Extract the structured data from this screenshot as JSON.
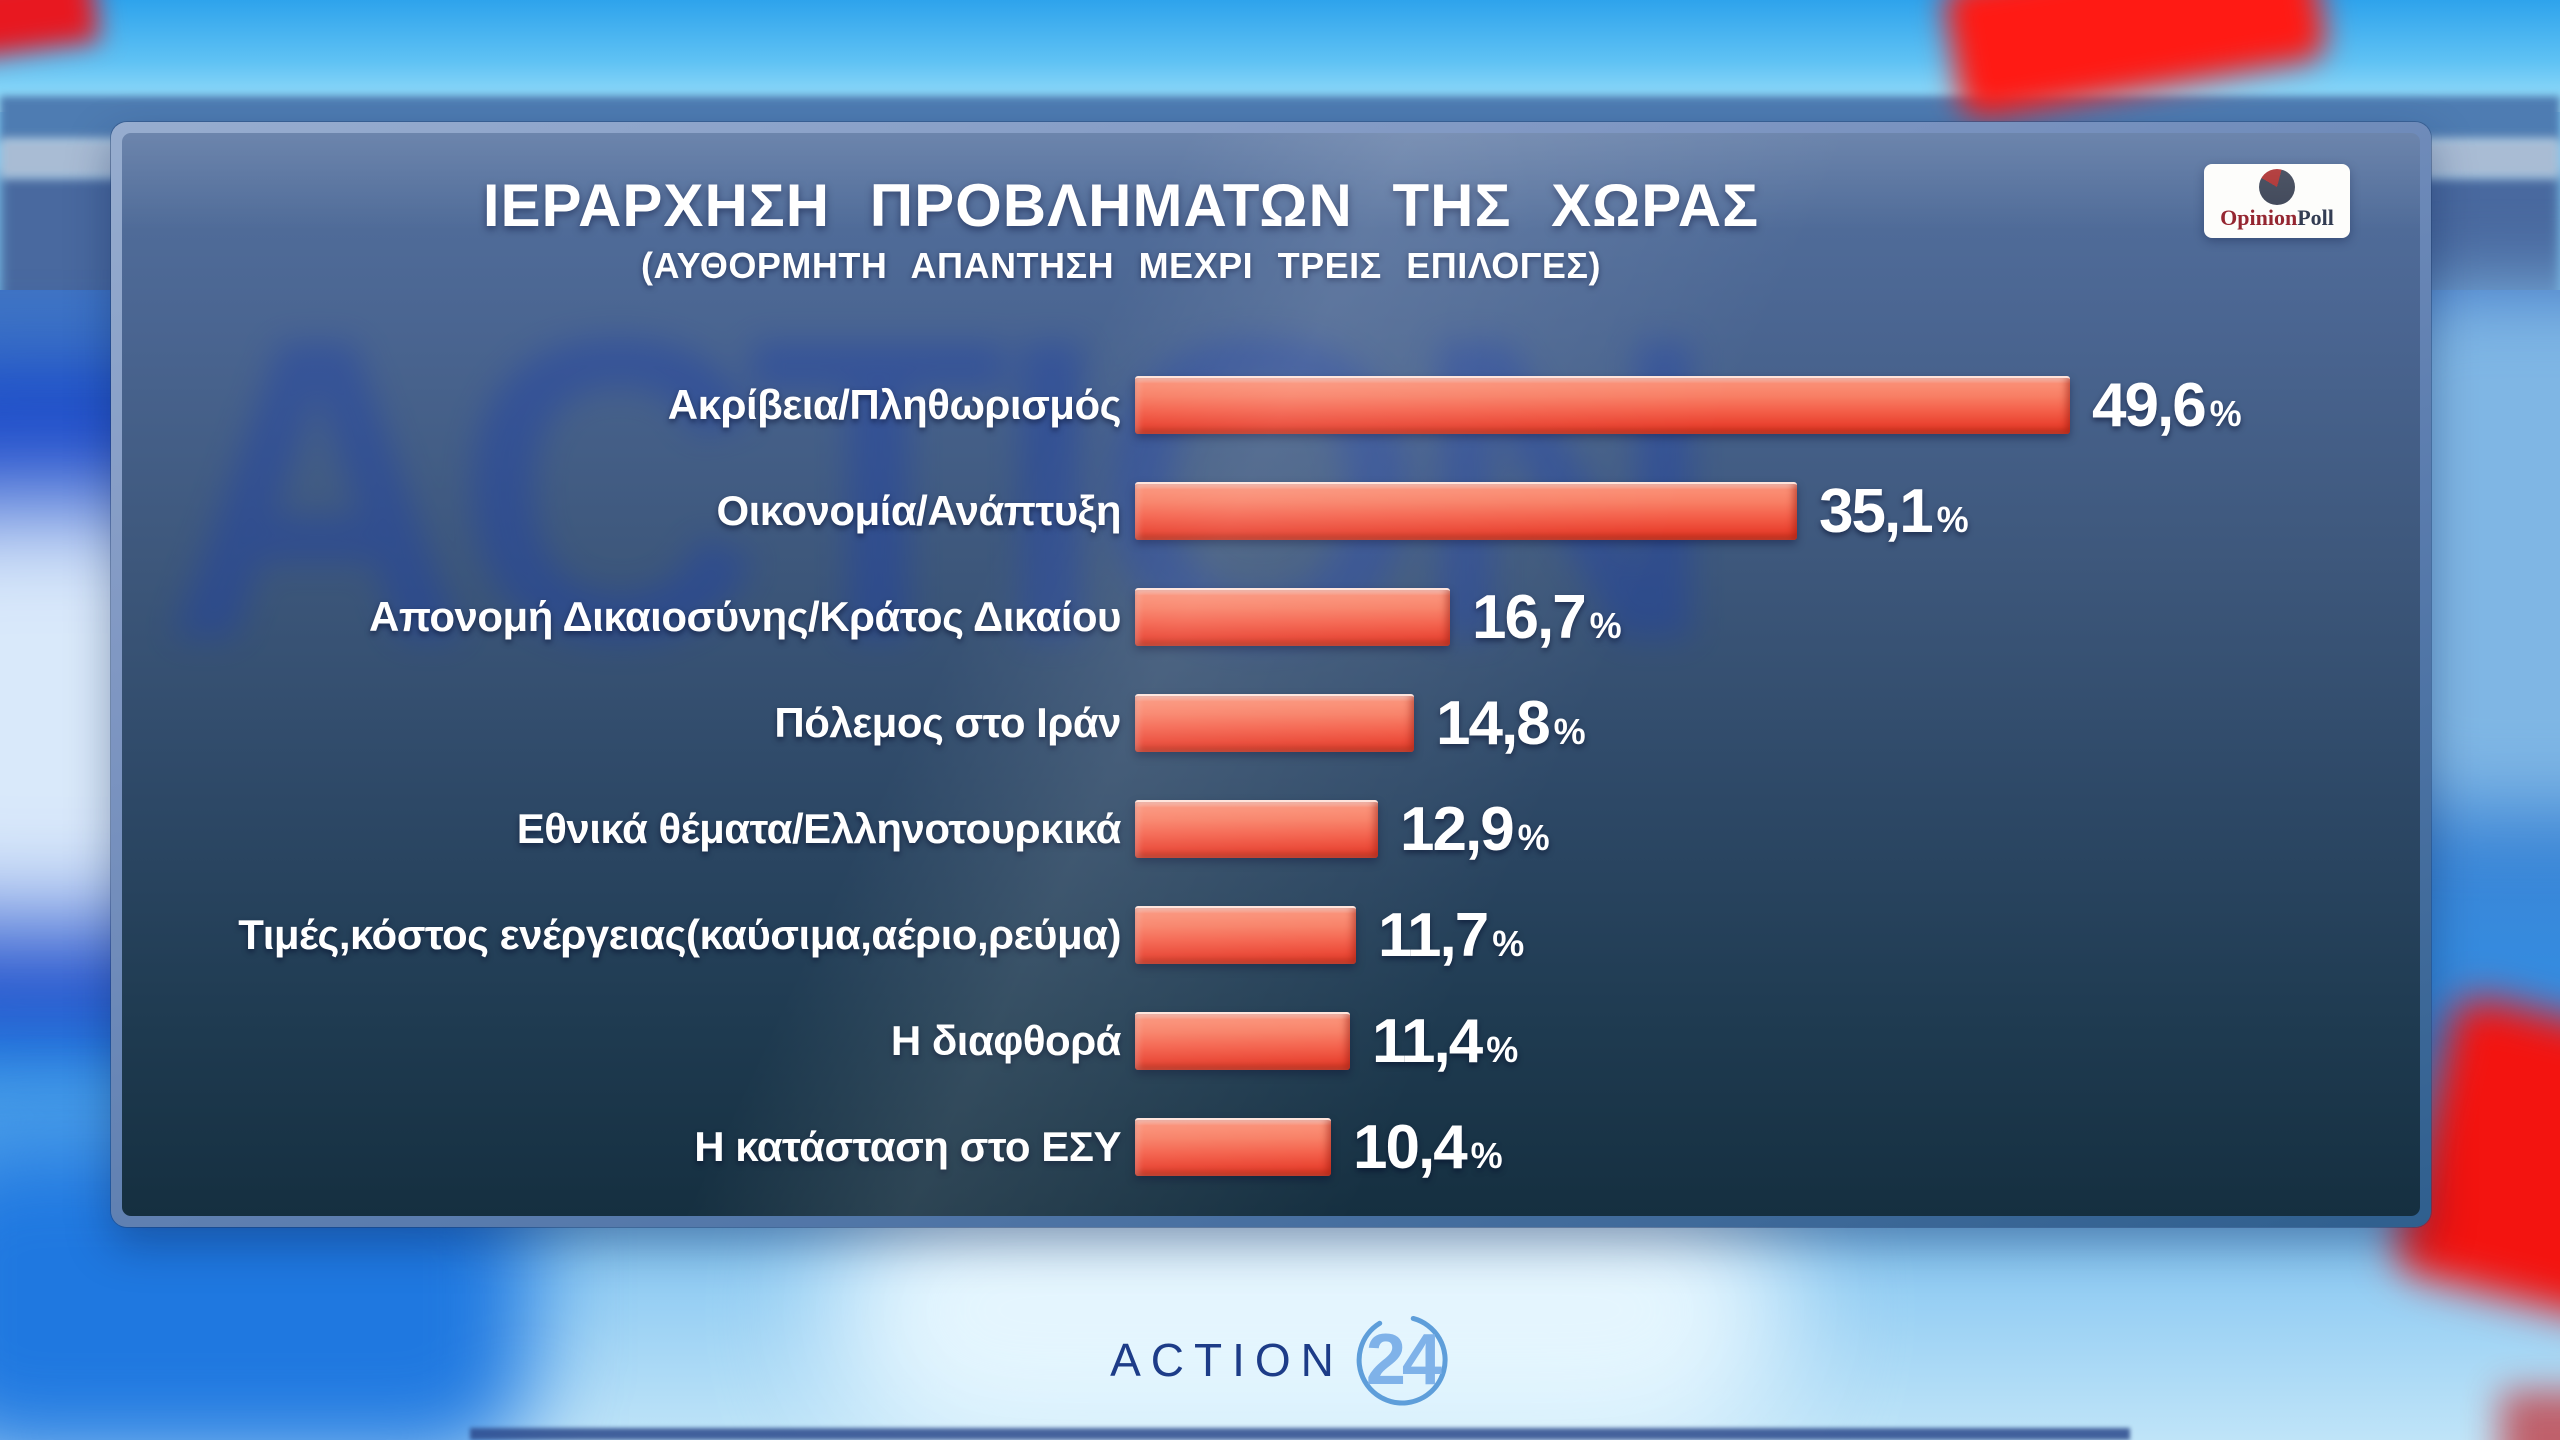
{
  "header": {
    "title": "ΙΕΡΑΡΧΗΣΗ ΠΡΟΒΛΗΜΑΤΩΝ ΤΗΣ ΧΩΡΑΣ",
    "subtitle": "(ΑΥΘΟΡΜΗΤΗ ΑΠΑΝΤΗΣΗ ΜΕΧΡΙ ΤΡΕΙΣ ΕΠΙΛΟΓΕΣ)"
  },
  "poll_logo": {
    "part1": "Opinion",
    "part2": "Poll",
    "icon": "pie-chart-icon",
    "part1_color": "#93232e",
    "part2_color": "#2f3950"
  },
  "chart_data": {
    "type": "bar",
    "orientation": "horizontal",
    "title": "ΙΕΡΑΡΧΗΣΗ ΠΡΟΒΛΗΜΑΤΩΝ ΤΗΣ ΧΩΡΑΣ",
    "subtitle": "(ΑΥΘΟΡΜΗΤΗ ΑΠΑΝΤΗΣΗ ΜΕΧΡΙ ΤΡΕΙΣ ΕΠΙΛΟΓΕΣ)",
    "unit": "%",
    "decimal_separator": ",",
    "categories": [
      "Ακρίβεια/Πληθωρισμός",
      "Οικονομία/Ανάπτυξη",
      "Απονομή Δικαιοσύνης/Κράτος Δικαίου",
      "Πόλεμος στο Ιράν",
      "Εθνικά θέματα/Ελληνοτουρκικά",
      "Τιμές,κόστος ενέργειας(καύσιμα,αέριο,ρεύμα)",
      "Η διαφθορά",
      "Η κατάσταση στο ΕΣΥ"
    ],
    "values": [
      49.6,
      35.1,
      16.7,
      14.8,
      12.9,
      11.7,
      11.4,
      10.4
    ],
    "value_labels": [
      "49,6",
      "35,1",
      "16,7",
      "14,8",
      "12,9",
      "11,7",
      "11,4",
      "10,4"
    ],
    "bar_color": "#ee4736",
    "xlim": [
      0,
      52
    ],
    "grid": false,
    "legend": false
  },
  "footer_logo": {
    "text": "ACTION",
    "number": "24",
    "text_color": "#1d3c88",
    "number_color": "#7fb2e9"
  },
  "watermark": "ACTION",
  "colors": {
    "panel_border": "#7e96c2",
    "panel_top": "#54719f",
    "panel_bottom": "#152f40",
    "background_sky": "#5fc2f4",
    "accent_red": "#ee4736"
  }
}
